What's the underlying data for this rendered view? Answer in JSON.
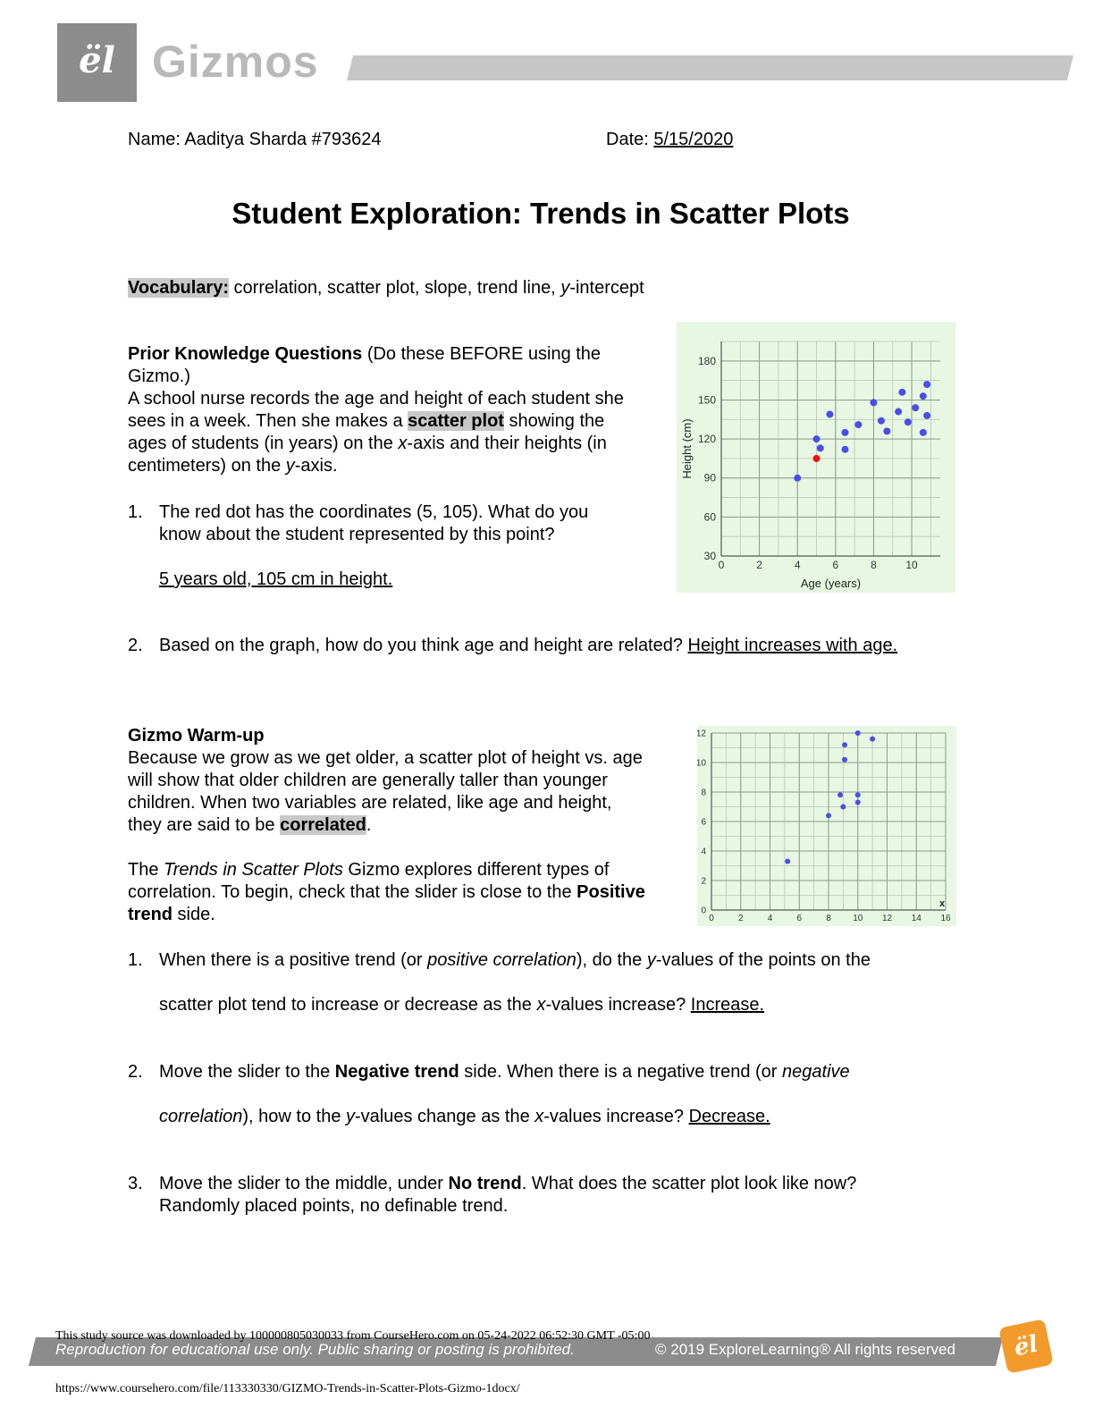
{
  "header": {
    "logo_glyph": "ël",
    "brand": "Gizmos"
  },
  "meta": {
    "name_label": "Name:",
    "name_value": "Aaditya Sharda #793624",
    "date_label": "Date:",
    "date_value": "5/15/2020"
  },
  "title": "Student Exploration: Trends in Scatter Plots",
  "vocabulary": {
    "label": "Vocabulary:",
    "text": " correlation, scatter plot, slope, trend line, ",
    "italic": "y",
    "tail": "-intercept"
  },
  "prior": {
    "heading": "Prior Knowledge Questions",
    "heading_note": " (Do these BEFORE using the Gizmo.)",
    "p1": "A school nurse records the age and height of each student she sees in a week. Then she makes a ",
    "p1_term": "scatter plot",
    "p1b": " showing the ages of students (in years) on the ",
    "p1_x": "x",
    "p1c": "-axis and their heights (in centimeters) on the ",
    "p1_y": "y",
    "p1d": "-axis.",
    "q1_num": "1.",
    "q1_text": "The red dot has the coordinates (5, 105). What do you know about the student represented by this point?",
    "q1_answer": "5 years old, 105 cm in height. ",
    "q2_num": "2.",
    "q2_text": "Based on the graph, how do you think age and height are related? ",
    "q2_answer": "Height increases with age. "
  },
  "warmup": {
    "heading": "Gizmo Warm-up",
    "p1": "Because we grow as we get older, a scatter plot of height vs. age will show that older children are generally taller than younger children. When two variables are related, like age and height, they are said to be ",
    "p1_term": "correlated",
    "p1_end": ".",
    "p2_a": "The ",
    "p2_italic": "Trends in Scatter Plots",
    "p2_b": " Gizmo explores different types of correlation. To begin, check that the slider is close to the ",
    "p2_bold": "Positive trend",
    "p2_c": " side.",
    "q1_num": "1.",
    "q1_a": "When there is a positive trend (or ",
    "q1_italic": "positive correlation",
    "q1_b": "), do the ",
    "q1_y": "y",
    "q1_c": "-values of the points on the",
    "q1_d": "scatter plot tend to increase or decrease as the ",
    "q1_x": "x",
    "q1_e": "-values increase? ",
    "q1_answer": "Increase. ",
    "q2_num": "2.",
    "q2_a": "Move the slider to the ",
    "q2_bold": "Negative trend",
    "q2_b": " side. When there is a negative trend (or ",
    "q2_italic1": "negative",
    "q2_italic2": "correlation",
    "q2_c": "), how to the ",
    "q2_y": "y",
    "q2_d": "-values change as the ",
    "q2_x": "x",
    "q2_e": "-values increase? ",
    "q2_answer": "Decrease. ",
    "q3_num": "3.",
    "q3_a": "Move the slider to the middle, under ",
    "q3_bold": "No trend",
    "q3_b": ". What does the scatter plot look like now?",
    "q3_answer": "Randomly placed points, no definable trend."
  },
  "chart_data": [
    {
      "type": "scatter",
      "xlabel": "Age (years)",
      "ylabel": "Height (cm)",
      "xlim": [
        0,
        11.5
      ],
      "ylim": [
        30,
        195
      ],
      "xticks": [
        0,
        2,
        4,
        6,
        8,
        10
      ],
      "yticks": [
        30,
        60,
        90,
        120,
        150,
        180
      ],
      "grid": true,
      "background": "#e7f7e2",
      "point_color": "#4a4ee6",
      "highlight_color": "#ee1111",
      "points": [
        {
          "x": 4,
          "y": 90
        },
        {
          "x": 5,
          "y": 120
        },
        {
          "x": 5.2,
          "y": 113
        },
        {
          "x": 5.7,
          "y": 139
        },
        {
          "x": 6.5,
          "y": 125
        },
        {
          "x": 6.5,
          "y": 112
        },
        {
          "x": 7.2,
          "y": 131
        },
        {
          "x": 8,
          "y": 148
        },
        {
          "x": 8.4,
          "y": 134
        },
        {
          "x": 8.7,
          "y": 126
        },
        {
          "x": 9.3,
          "y": 141
        },
        {
          "x": 9.5,
          "y": 156
        },
        {
          "x": 9.8,
          "y": 133
        },
        {
          "x": 10.2,
          "y": 144
        },
        {
          "x": 10.6,
          "y": 153
        },
        {
          "x": 10.6,
          "y": 125
        },
        {
          "x": 10.8,
          "y": 162
        },
        {
          "x": 10.8,
          "y": 138
        }
      ],
      "highlight_points": [
        {
          "x": 5,
          "y": 105
        }
      ]
    },
    {
      "type": "scatter",
      "xlim": [
        0,
        16
      ],
      "ylim": [
        0,
        12
      ],
      "xticks": [
        0,
        2,
        4,
        6,
        8,
        10,
        12,
        14,
        16
      ],
      "yticks": [
        0,
        2,
        4,
        6,
        8,
        10,
        12
      ],
      "grid": true,
      "background": "#e7f7e2",
      "point_color": "#4a4ee6",
      "axis_marker": "x",
      "points": [
        {
          "x": 5.2,
          "y": 3.3
        },
        {
          "x": 8,
          "y": 6.4
        },
        {
          "x": 8.8,
          "y": 7.8
        },
        {
          "x": 9,
          "y": 7
        },
        {
          "x": 9.1,
          "y": 10.2
        },
        {
          "x": 9.1,
          "y": 11.2
        },
        {
          "x": 10,
          "y": 7.8
        },
        {
          "x": 10,
          "y": 7.3
        },
        {
          "x": 10,
          "y": 12
        },
        {
          "x": 11,
          "y": 11.6
        }
      ]
    }
  ],
  "footer": {
    "left": "Reproduction for educational use only. Public sharing or posting is prohibited.",
    "right": "© 2019 ExploreLearning® All rights reserved",
    "logo_glyph": "ël",
    "study_note": "This study source was downloaded by 100000805030033 from CourseHero.com on 05-24-2022 06:52:30 GMT -05:00",
    "url": "https://www.coursehero.com/file/113330330/GIZMO-Trends-in-Scatter-Plots-Gizmo-1docx/"
  }
}
